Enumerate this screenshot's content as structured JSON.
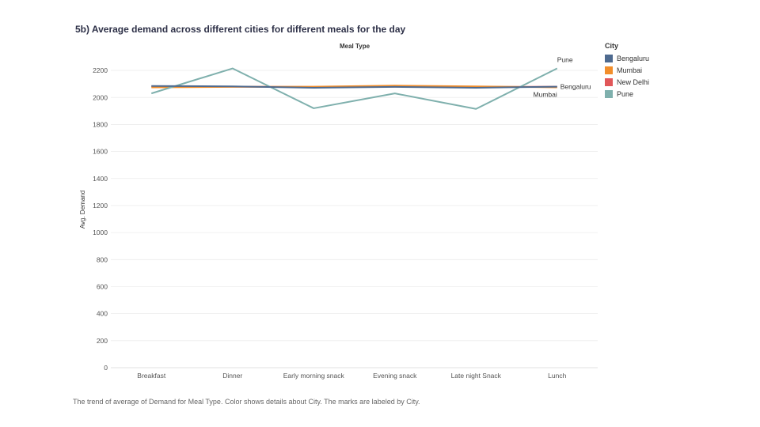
{
  "title": "5b) Average demand across different cities for different meals for the day",
  "caption": "The trend of average of Demand for Meal Type.  Color shows details about City.  The marks are labeled by City.",
  "legend": {
    "title": "City",
    "items": [
      {
        "label": "Bengaluru",
        "color": "#4e6a8f"
      },
      {
        "label": "Mumbai",
        "color": "#f28e2b"
      },
      {
        "label": "New Delhi",
        "color": "#e15759"
      },
      {
        "label": "Pune",
        "color": "#7fb0ad"
      }
    ]
  },
  "chart_data": {
    "type": "line",
    "title": "5b) Average demand across different cities for different meals for the day",
    "xlabel": "Meal Type",
    "ylabel": "Avg. Demand",
    "categories": [
      "Breakfast",
      "Dinner",
      "Early morning snack",
      "Evening snack",
      "Late night Snack",
      "Lunch"
    ],
    "ylim": [
      0,
      2300
    ],
    "yticks": [
      0,
      200,
      400,
      600,
      800,
      1000,
      1200,
      1400,
      1600,
      1800,
      2000,
      2200
    ],
    "grid": true,
    "legend_position": "right",
    "series": [
      {
        "name": "New Delhi",
        "color": "#e15759",
        "values": [
          2082,
          2080,
          2078,
          2080,
          2078,
          2080
        ]
      },
      {
        "name": "Mumbai",
        "color": "#f28e2b",
        "values": [
          2075,
          2078,
          2080,
          2088,
          2082,
          2075
        ]
      },
      {
        "name": "Pune",
        "color": "#7fb0ad",
        "values": [
          2030,
          2215,
          1920,
          2030,
          1915,
          2215
        ]
      },
      {
        "name": "Bengaluru",
        "color": "#4e6a8f",
        "values": [
          2085,
          2082,
          2072,
          2078,
          2072,
          2080
        ]
      }
    ],
    "end_labels": [
      "Pune",
      "Bengaluru",
      "Mumbai"
    ]
  }
}
